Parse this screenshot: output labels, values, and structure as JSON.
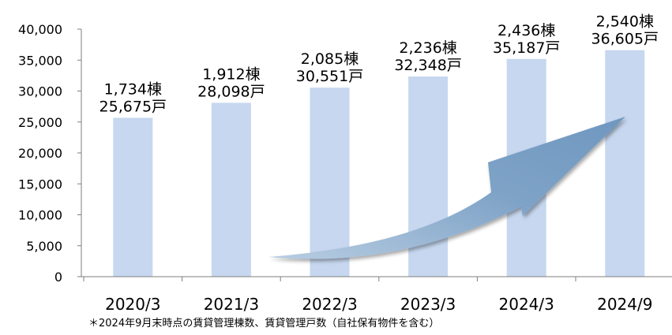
{
  "chart_data": {
    "type": "bar",
    "categories": [
      "2020/3",
      "2021/3",
      "2022/3",
      "2023/3",
      "2024/3",
      "2024/9"
    ],
    "values": [
      25675,
      28098,
      30551,
      32348,
      35187,
      36605
    ],
    "data_labels": [
      {
        "buildings": "1,734棟",
        "units": "25,675戸"
      },
      {
        "buildings": "1,912棟",
        "units": "28,098戸"
      },
      {
        "buildings": "2,085棟",
        "units": "30,551戸"
      },
      {
        "buildings": "2,236棟",
        "units": "32,348戸"
      },
      {
        "buildings": "2,436棟",
        "units": "35,187戸"
      },
      {
        "buildings": "2,540棟",
        "units": "36,605戸"
      }
    ],
    "y_ticks": [
      "0",
      "5,000",
      "10,000",
      "15,000",
      "20,000",
      "25,000",
      "30,000",
      "35,000",
      "40,000"
    ],
    "ylim": [
      0,
      40000
    ],
    "bar_color": "#c6d7ef",
    "arrow_color": "#7fa3c7",
    "grid": false,
    "footnote": "＊2024年9月末時点の賃貸管理棟数、賃貸管理戸数（自社保有物件を含む）"
  }
}
